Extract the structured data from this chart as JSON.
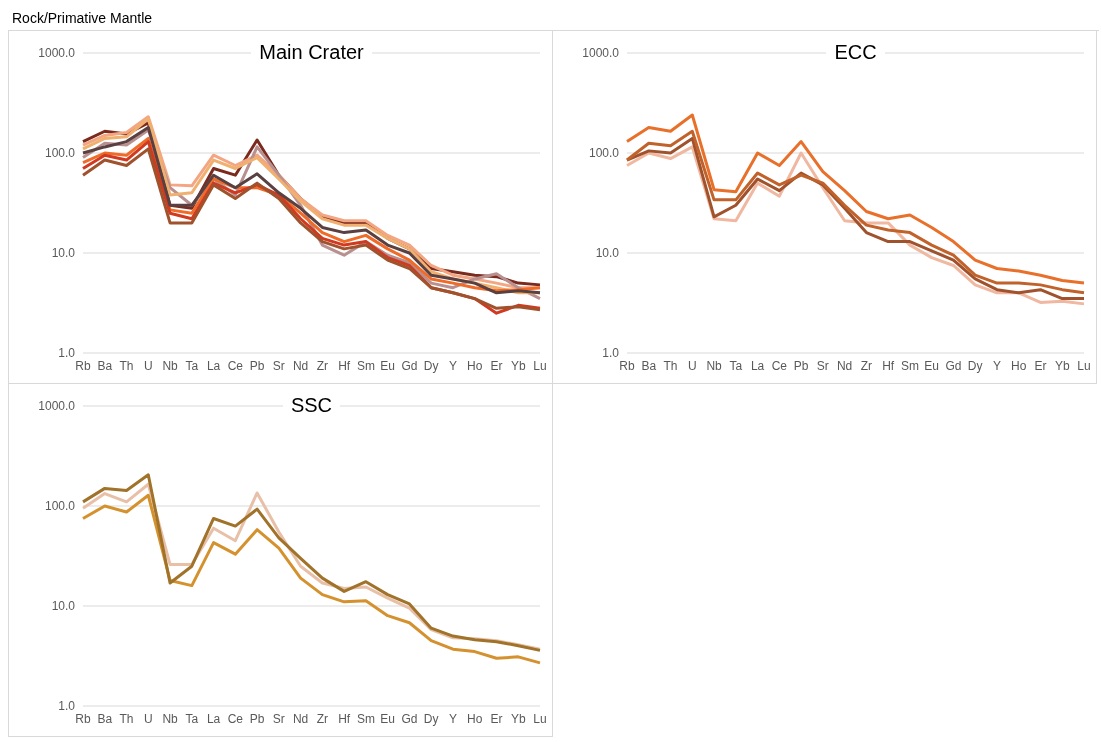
{
  "chart_data": [
    {
      "type": "line",
      "title": "Main Crater",
      "annotations": [
        "Rock/Primative Mantle"
      ],
      "categories": [
        "Rb",
        "Ba",
        "Th",
        "U",
        "Nb",
        "Ta",
        "La",
        "Ce",
        "Pb",
        "Sr",
        "Nd",
        "Zr",
        "Hf",
        "Sm",
        "Eu",
        "Gd",
        "Dy",
        "Y",
        "Ho",
        "Er",
        "Yb",
        "Lu"
      ],
      "log": "y",
      "grid": "y",
      "ylim": [
        1,
        1000
      ],
      "yticks": [
        {
          "value": 1,
          "label": "1.0"
        },
        {
          "value": 10,
          "label": "10.0"
        },
        {
          "value": 100,
          "label": "100.0"
        },
        {
          "value": 1000,
          "label": "1000.0"
        }
      ],
      "series": [
        {
          "color": "#7b2a1e",
          "values": [
            130,
            165,
            155,
            200,
            30,
            28,
            70,
            60,
            135,
            60,
            35,
            23,
            20,
            20,
            14,
            11,
            7,
            6.5,
            6,
            5.8,
            5,
            4.8
          ]
        },
        {
          "color": "#f4a582",
          "values": [
            120,
            150,
            160,
            230,
            48,
            47,
            95,
            75,
            95,
            60,
            35,
            24,
            21,
            21,
            15,
            12,
            7.5,
            6,
            5.5,
            5,
            4.5,
            4.5
          ]
        },
        {
          "color": "#b89090",
          "values": [
            90,
            125,
            120,
            170,
            45,
            30,
            55,
            38,
            115,
            60,
            30,
            12,
            9.5,
            13,
            9.5,
            8,
            5,
            4.5,
            5.5,
            6.2,
            4.5,
            3.5
          ]
        },
        {
          "color": "#f0b070",
          "values": [
            110,
            140,
            145,
            220,
            38,
            40,
            85,
            70,
            90,
            55,
            33,
            22,
            19,
            19,
            14,
            11,
            6.5,
            5.5,
            5,
            4.5,
            4,
            4
          ]
        },
        {
          "color": "#f06a28",
          "values": [
            80,
            100,
            95,
            140,
            27,
            25,
            55,
            45,
            45,
            38,
            25,
            16,
            13,
            15,
            11,
            8.5,
            5.5,
            5,
            4.5,
            4.2,
            4.3,
            4.5
          ]
        },
        {
          "color": "#d03a20",
          "values": [
            70,
            95,
            85,
            130,
            25,
            22,
            50,
            40,
            48,
            38,
            22,
            14,
            12,
            13,
            9,
            7.5,
            4.5,
            4,
            3.5,
            2.5,
            3,
            2.8
          ]
        },
        {
          "color": "#a0522d",
          "values": [
            60,
            85,
            75,
            110,
            20,
            20,
            48,
            35,
            50,
            35,
            20,
            13,
            11,
            12,
            8.5,
            7,
            4.5,
            4,
            3.5,
            2.8,
            2.9,
            2.7
          ]
        },
        {
          "color": "#5a4040",
          "values": [
            100,
            115,
            130,
            180,
            30,
            30,
            60,
            45,
            62,
            40,
            28,
            18,
            16,
            17,
            12,
            10,
            6,
            5.5,
            5,
            4,
            4.2,
            4
          ]
        }
      ]
    },
    {
      "type": "line",
      "title": "ECC",
      "categories": [
        "Rb",
        "Ba",
        "Th",
        "U",
        "Nb",
        "Ta",
        "La",
        "Ce",
        "Pb",
        "Sr",
        "Nd",
        "Zr",
        "Hf",
        "Sm",
        "Eu",
        "Gd",
        "Dy",
        "Y",
        "Ho",
        "Er",
        "Yb",
        "Lu"
      ],
      "log": "y",
      "grid": "y",
      "ylim": [
        1,
        1000
      ],
      "yticks": [
        {
          "value": 1,
          "label": "1.0"
        },
        {
          "value": 10,
          "label": "10.0"
        },
        {
          "value": 100,
          "label": "100.0"
        },
        {
          "value": 1000,
          "label": "1000.0"
        }
      ],
      "series": [
        {
          "color": "#f0b8a0",
          "values": [
            75,
            100,
            88,
            115,
            22,
            21,
            50,
            37,
            100,
            45,
            21,
            20,
            20,
            12,
            9,
            7.5,
            4.8,
            4,
            4,
            3.2,
            3.3,
            3.1
          ]
        },
        {
          "color": "#a0522d",
          "values": [
            85,
            105,
            100,
            140,
            23,
            30,
            55,
            42,
            63,
            48,
            28,
            16,
            13,
            13,
            10.5,
            8.5,
            5.5,
            4.3,
            4,
            4.3,
            3.5,
            3.5
          ]
        },
        {
          "color": "#c0622a",
          "values": [
            85,
            125,
            118,
            165,
            34,
            34,
            63,
            48,
            60,
            50,
            30,
            19,
            17,
            16,
            12,
            9.5,
            6,
            5,
            5,
            4.8,
            4.3,
            4
          ]
        },
        {
          "color": "#e8702a",
          "values": [
            130,
            180,
            165,
            240,
            43,
            41,
            100,
            75,
            130,
            65,
            42,
            26,
            22,
            24,
            18,
            13,
            8.5,
            7,
            6.6,
            6,
            5.3,
            5
          ]
        }
      ]
    },
    {
      "type": "line",
      "title": "SSC",
      "categories": [
        "Rb",
        "Ba",
        "Th",
        "U",
        "Nb",
        "Ta",
        "La",
        "Ce",
        "Pb",
        "Sr",
        "Nd",
        "Zr",
        "Hf",
        "Sm",
        "Eu",
        "Gd",
        "Dy",
        "Y",
        "Ho",
        "Er",
        "Yb",
        "Lu"
      ],
      "log": "y",
      "grid": "y",
      "ylim": [
        1,
        1000
      ],
      "yticks": [
        {
          "value": 1,
          "label": "1.0"
        },
        {
          "value": 10,
          "label": "10.0"
        },
        {
          "value": 100,
          "label": "100.0"
        },
        {
          "value": 1000,
          "label": "1000.0"
        }
      ],
      "series": [
        {
          "color": "#e8c0a8",
          "values": [
            95,
            133,
            110,
            165,
            26,
            26,
            60,
            45,
            135,
            55,
            25,
            17,
            15,
            15.5,
            12,
            9.5,
            5.8,
            4.8,
            4.7,
            4.5,
            4.1,
            3.7
          ]
        },
        {
          "color": "#d4912e",
          "values": [
            75,
            100,
            87,
            128,
            18,
            16,
            43,
            33,
            58,
            38,
            19,
            13,
            11,
            11.3,
            8,
            6.8,
            4.5,
            3.7,
            3.5,
            3,
            3.1,
            2.7
          ]
        },
        {
          "color": "#a0722a",
          "values": [
            110,
            150,
            143,
            205,
            17,
            25,
            75,
            63,
            93,
            48,
            30,
            19,
            14,
            17.5,
            13,
            10.5,
            6,
            5,
            4.6,
            4.4,
            4,
            3.6
          ]
        }
      ]
    }
  ]
}
